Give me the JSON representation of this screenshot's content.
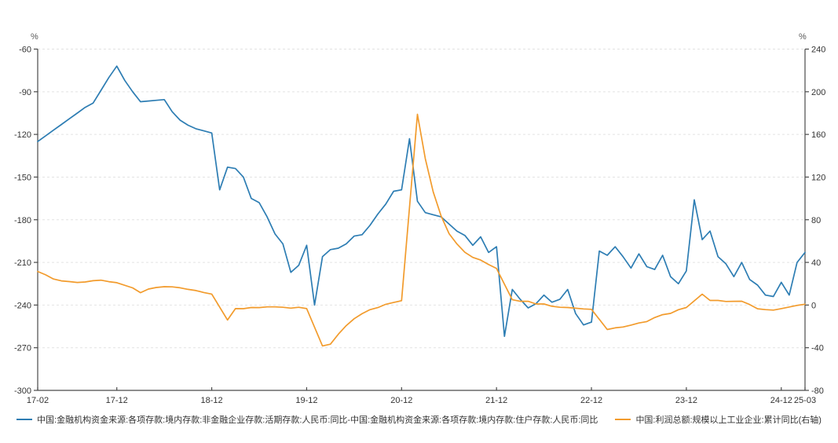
{
  "chart_data": {
    "type": "line",
    "left_axis": {
      "unit": "%",
      "ticks": [
        -60,
        -90,
        -120,
        -150,
        -180,
        -210,
        -240,
        -270,
        -300
      ]
    },
    "right_axis": {
      "unit": "%",
      "ticks": [
        240,
        200,
        160,
        120,
        80,
        40,
        0,
        -40,
        -80
      ]
    },
    "left_ylim": [
      -300,
      -60
    ],
    "right_ylim": [
      -80,
      240
    ],
    "grid": true,
    "legend_position": "bottom",
    "x_ticks": [
      {
        "label": "17-02",
        "index": 0
      },
      {
        "label": "17-12",
        "index": 10
      },
      {
        "label": "18-12",
        "index": 22
      },
      {
        "label": "19-12",
        "index": 34
      },
      {
        "label": "20-12",
        "index": 46
      },
      {
        "label": "21-12",
        "index": 58
      },
      {
        "label": "22-12",
        "index": 70
      },
      {
        "label": "23-12",
        "index": 82
      },
      {
        "label": "24-12",
        "index": 94
      },
      {
        "label": "25-03",
        "index": 97
      }
    ],
    "x": [
      "17-02",
      "17-03",
      "17-04",
      "17-05",
      "17-06",
      "17-07",
      "17-08",
      "17-09",
      "17-10",
      "17-11",
      "17-12",
      "18-01",
      "18-02",
      "18-03",
      "18-04",
      "18-05",
      "18-06",
      "18-07",
      "18-08",
      "18-09",
      "18-10",
      "18-11",
      "18-12",
      "19-01",
      "19-02",
      "19-03",
      "19-04",
      "19-05",
      "19-06",
      "19-07",
      "19-08",
      "19-09",
      "19-10",
      "19-11",
      "19-12",
      "20-01",
      "20-02",
      "20-03",
      "20-04",
      "20-05",
      "20-06",
      "20-07",
      "20-08",
      "20-09",
      "20-10",
      "20-11",
      "20-12",
      "21-01",
      "21-02",
      "21-03",
      "21-04",
      "21-05",
      "21-06",
      "21-07",
      "21-08",
      "21-09",
      "21-10",
      "21-11",
      "21-12",
      "22-01",
      "22-02",
      "22-03",
      "22-04",
      "22-05",
      "22-06",
      "22-07",
      "22-08",
      "22-09",
      "22-10",
      "22-11",
      "22-12",
      "23-01",
      "23-02",
      "23-03",
      "23-04",
      "23-05",
      "23-06",
      "23-07",
      "23-08",
      "23-09",
      "23-10",
      "23-11",
      "23-12",
      "24-01",
      "24-02",
      "24-03",
      "24-04",
      "24-05",
      "24-06",
      "24-07",
      "24-08",
      "24-09",
      "24-10",
      "24-11",
      "24-12",
      "25-01",
      "25-02",
      "25-03"
    ],
    "series": [
      {
        "name": "中国:金融机构资金来源:各项存款:境内存款:非金融企业存款:活期存款:人民币:同比-中国:金融机构资金来源:各项存款:境内存款:住户存款:人民币:同比",
        "axis": "left",
        "color": "#2d7db3",
        "values": [
          -125,
          -121,
          -117,
          -113,
          -109,
          -105,
          -101,
          -98,
          -89,
          -80,
          -72,
          -82,
          -90,
          -97,
          -96.5,
          -96,
          -95.5,
          -104,
          -110,
          -113.5,
          -116,
          -117.5,
          -119,
          -159,
          -143,
          -144,
          -150,
          -165,
          -168,
          -178,
          -190,
          -197,
          -217,
          -212,
          -198,
          -240,
          -206,
          -201,
          -200,
          -197,
          -191.5,
          -190.5,
          -184,
          -176,
          -169,
          -160,
          -159,
          -123,
          -167,
          -175,
          -176.5,
          -178,
          -183,
          -188,
          -191,
          -198,
          -192,
          -203,
          -199,
          -262,
          -229,
          -236,
          -242,
          -239,
          -233,
          -238,
          -236,
          -229,
          -246,
          -254,
          -252,
          -202,
          -205,
          -199,
          -206,
          -214,
          -204,
          -213,
          -215,
          -205,
          -220,
          -225,
          -216,
          -166,
          -194,
          -188,
          -206,
          -211,
          -220,
          -210,
          -222,
          -226,
          -233,
          -234,
          -224,
          -233,
          -210,
          -203
        ]
      },
      {
        "name": "中国:利润总额:规模以上工业企业:累计同比(右轴)",
        "axis": "right",
        "color": "#f29b2c",
        "values": [
          31.5,
          28.3,
          24.4,
          22.7,
          22.0,
          21.2,
          21.6,
          22.8,
          23.3,
          21.9,
          21.0,
          null,
          16.1,
          11.6,
          15.0,
          16.5,
          17.2,
          17.1,
          16.2,
          14.7,
          13.6,
          11.8,
          10.3,
          null,
          -14.0,
          -3.3,
          -3.4,
          -2.3,
          -2.4,
          -1.7,
          -1.7,
          -2.1,
          -2.9,
          -2.1,
          -3.3,
          null,
          -38.3,
          -36.7,
          -27.4,
          -19.3,
          -12.8,
          -8.1,
          -4.4,
          -2.4,
          0.7,
          2.4,
          4.1,
          null,
          178.9,
          137.3,
          106.1,
          83.4,
          66.9,
          57.3,
          49.5,
          44.7,
          42.2,
          38.0,
          34.3,
          null,
          5.0,
          3.5,
          3.5,
          1.0,
          1.0,
          -1.1,
          -2.1,
          -2.3,
          -3.0,
          -3.6,
          -4.0,
          null,
          -22.9,
          -21.4,
          -20.6,
          -18.8,
          -16.8,
          -15.5,
          -11.7,
          -9.0,
          -7.8,
          -4.4,
          -2.3,
          null,
          10.2,
          4.3,
          4.3,
          3.4,
          3.5,
          3.6,
          0.5,
          -3.5,
          -4.3,
          -4.7,
          -3.3,
          null,
          -0.3,
          0.8
        ]
      }
    ],
    "style": {
      "grid_color": "#e2e2e2",
      "axis_color": "#4a4a4a",
      "tick_label_color": "#333333"
    }
  }
}
